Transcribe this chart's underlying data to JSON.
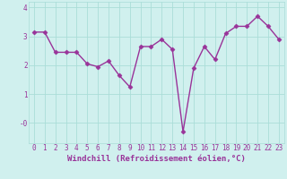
{
  "x": [
    0,
    1,
    2,
    3,
    4,
    5,
    6,
    7,
    8,
    9,
    10,
    11,
    12,
    13,
    14,
    15,
    16,
    17,
    18,
    19,
    20,
    21,
    22,
    23
  ],
  "y": [
    3.15,
    3.15,
    2.45,
    2.45,
    2.45,
    2.05,
    1.95,
    2.15,
    1.65,
    1.25,
    2.65,
    2.65,
    2.9,
    2.55,
    -0.3,
    1.9,
    2.65,
    2.2,
    3.1,
    3.35,
    3.35,
    3.7,
    3.35,
    2.9
  ],
  "line_color": "#993399",
  "marker": "D",
  "markersize": 2.5,
  "linewidth": 1.0,
  "background_color": "#d0f0ee",
  "grid_color": "#aaddd8",
  "xlabel": "Windchill (Refroidissement éolien,°C)",
  "xlabel_color": "#993399",
  "xlabel_fontsize": 6.5,
  "tick_color": "#993399",
  "tick_fontsize": 5.5,
  "ylim": [
    -0.7,
    4.2
  ],
  "xlim": [
    -0.5,
    23.5
  ]
}
